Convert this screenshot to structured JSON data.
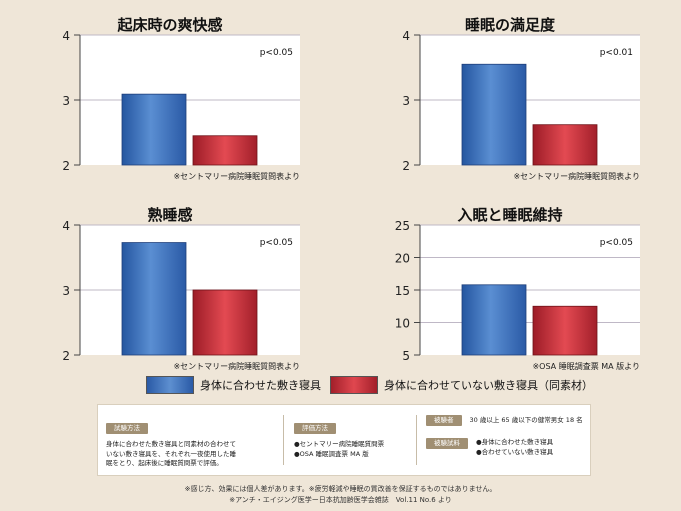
{
  "chart_data": [
    {
      "type": "bar",
      "title": "起床時の爽快感",
      "categories": [
        "身体に合わせた敷き寝具",
        "身体に合わせていない敷き寝具（同素材）"
      ],
      "values": [
        3.09,
        2.45
      ],
      "ylim": [
        2,
        4
      ],
      "yticks": [
        "2",
        "3",
        "4"
      ],
      "annotation": "p<0.05",
      "source": "※セントマリー病院睡眠質問表より",
      "grid": true
    },
    {
      "type": "bar",
      "title": "睡眠の満足度",
      "categories": [
        "身体に合わせた敷き寝具",
        "身体に合わせていない敷き寝具（同素材）"
      ],
      "values": [
        3.55,
        2.62
      ],
      "ylim": [
        2,
        4
      ],
      "yticks": [
        "2",
        "3",
        "4"
      ],
      "annotation": "p<0.01",
      "source": "※セントマリー病院睡眠質問表より",
      "grid": true
    },
    {
      "type": "bar",
      "title": "熟睡感",
      "categories": [
        "身体に合わせた敷き寝具",
        "身体に合わせていない敷き寝具（同素材）"
      ],
      "values": [
        3.73,
        3.0
      ],
      "ylim": [
        2,
        4
      ],
      "yticks": [
        "2",
        "3",
        "4"
      ],
      "annotation": "p<0.05",
      "source": "※セントマリー病院睡眠質問表より",
      "grid": true
    },
    {
      "type": "bar",
      "title": "入眠と睡眠維持",
      "categories": [
        "身体に合わせた敷き寝具",
        "身体に合わせていない敷き寝具（同素材）"
      ],
      "values": [
        15.8,
        12.5
      ],
      "ylim": [
        5,
        25
      ],
      "yticks": [
        "5",
        "10",
        "15",
        "20",
        "25"
      ],
      "annotation": "p<0.05",
      "source": "※OSA 睡眠調査票 MA 版より",
      "grid": true
    }
  ],
  "legend": {
    "series1": "身体に合わせた敷き寝具",
    "series2": "身体に合わせていない敷き寝具（同素材）"
  },
  "colors": {
    "series1": "#3f6fb8",
    "series2": "#c8323a",
    "grid": "#bfb8c6",
    "panel_bg": "#ffffff",
    "page_bg": "#efe6d8"
  },
  "info": {
    "method_tag": "試験方法",
    "method_text": [
      "身体に合わせた敷き寝具と同素材の合わせて",
      "いない敷き寝具を、それぞれ一夜使用した睡",
      "眠をとり、起床後に睡眠質問票で評価。"
    ],
    "eval_tag": "評価方法",
    "eval_text": [
      "●セントマリー病院睡眠質問票",
      "●OSA 睡眠調査票 MA 版"
    ],
    "subject_tag": "被験者",
    "subject_text": "30 歳以上 65 歳以下の健常男女 18 名",
    "sample_tag": "被験試料",
    "sample_text": [
      "●身体に合わせた敷き寝具",
      "●合わせていない敷き寝具"
    ]
  },
  "footnotes": [
    "※感じ方、効果には個人差があります。※疲労軽減や睡眠の質改善を保証するものではありません。",
    "※アンチ・エイジング医学ー日本抗加齢医学会雑誌　Vol.11 No.6 より"
  ]
}
